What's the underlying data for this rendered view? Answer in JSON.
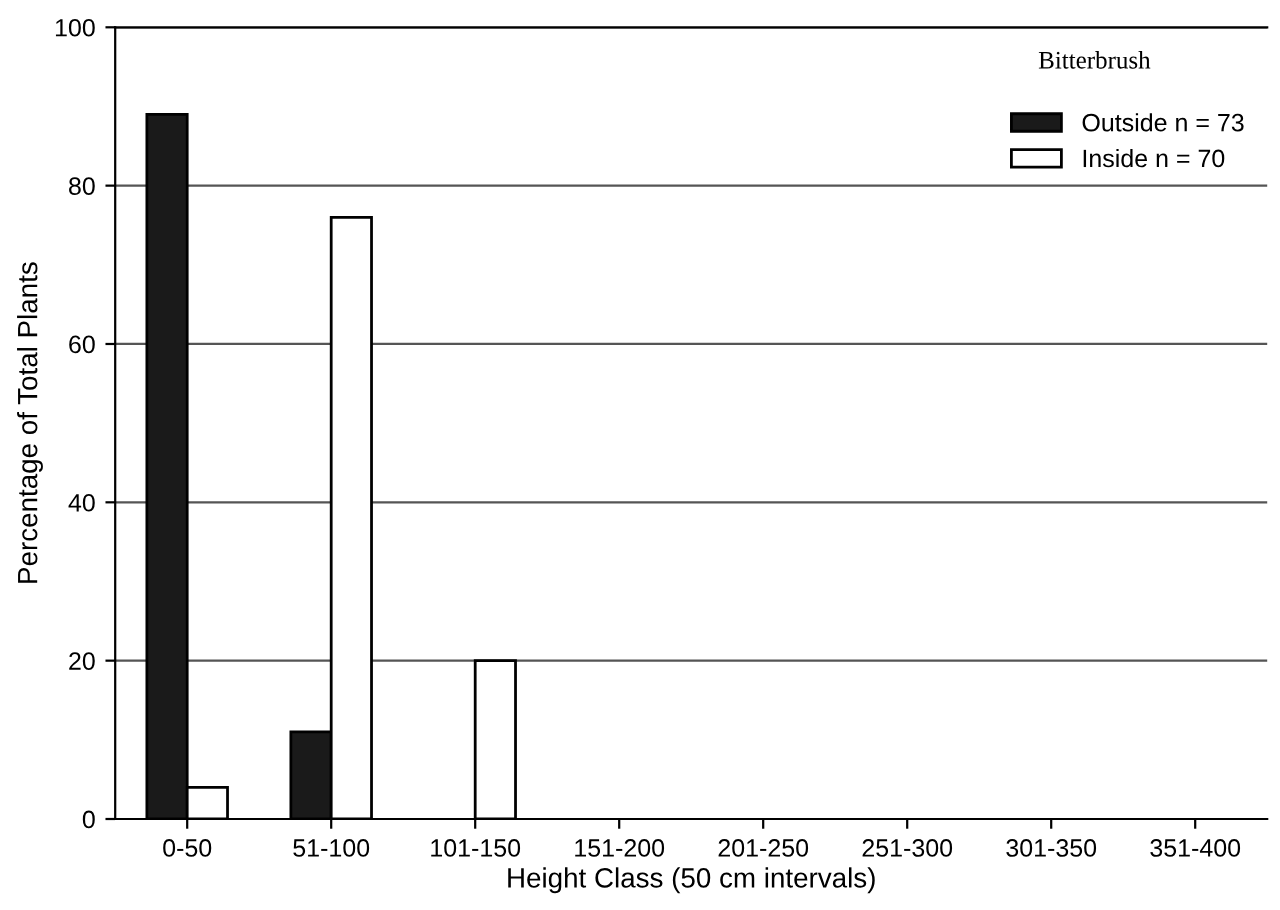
{
  "chart_data": {
    "type": "bar",
    "title": "Bitterbrush",
    "xlabel": "Height Class (50 cm intervals)",
    "ylabel": "Percentage of Total Plants",
    "categories": [
      "0-50",
      "51-100",
      "101-150",
      "151-200",
      "201-250",
      "251-300",
      "301-350",
      "351-400"
    ],
    "series": [
      {
        "name": "Outside n = 73",
        "color": "#1a1a1a",
        "values": [
          89,
          11,
          null,
          null,
          null,
          null,
          null,
          null
        ]
      },
      {
        "name": "Inside n = 70",
        "color": "#ffffff",
        "values": [
          4,
          76,
          20,
          null,
          null,
          null,
          null,
          null
        ]
      }
    ],
    "ylim": [
      0,
      100
    ],
    "yticks": [
      0,
      20,
      40,
      60,
      80,
      100
    ],
    "grid": "y",
    "legend": "top right"
  }
}
